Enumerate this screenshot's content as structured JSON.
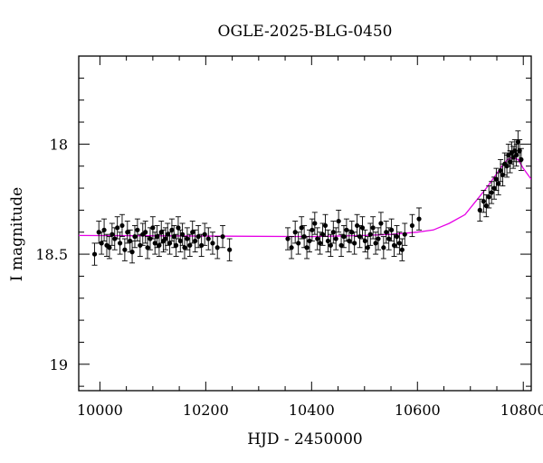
{
  "chart_data": {
    "type": "scatter",
    "title": "OGLE-2025-BLG-0450",
    "xlabel": "HJD - 2450000",
    "ylabel": "I magnitude",
    "xlim": [
      9960,
      10815
    ],
    "ylim": [
      17.6,
      19.12
    ],
    "y_inverted": true,
    "x_ticks": [
      10000,
      10200,
      10400,
      10600,
      10800
    ],
    "y_ticks": [
      18,
      18.5,
      19
    ],
    "colors": {
      "points": "#000000",
      "model": "#e600e6"
    },
    "series": [
      {
        "kind": "data_with_errorbars",
        "x": [
          9990,
          9998,
          10003,
          10008,
          10013,
          10018,
          10023,
          10028,
          10033,
          10038,
          10042,
          10047,
          10052,
          10057,
          10061,
          10066,
          10071,
          10076,
          10081,
          10086,
          10090,
          10095,
          10100,
          10104,
          10108,
          10112,
          10116,
          10120,
          10124,
          10128,
          10132,
          10136,
          10140,
          10144,
          10148,
          10152,
          10156,
          10160,
          10165,
          10170,
          10175,
          10180,
          10186,
          10192,
          10198,
          10205,
          10213,
          10222,
          10232,
          10245,
          10355,
          10362,
          10369,
          10375,
          10381,
          10386,
          10391,
          10396,
          10401,
          10406,
          10411,
          10416,
          10421,
          10426,
          10431,
          10436,
          10441,
          10446,
          10451,
          10456,
          10461,
          10466,
          10471,
          10476,
          10481,
          10486,
          10491,
          10496,
          10501,
          10506,
          10511,
          10516,
          10521,
          10526,
          10531,
          10536,
          10541,
          10546,
          10551,
          10556,
          10561,
          10566,
          10571,
          10576,
          10590,
          10603,
          10718,
          10725,
          10730,
          10735,
          10740,
          10745,
          10749,
          10753,
          10757,
          10761,
          10765,
          10769,
          10772,
          10775,
          10778,
          10781,
          10784,
          10787,
          10790,
          10793,
          10796
        ],
        "y": [
          18.5,
          18.4,
          18.45,
          18.39,
          18.46,
          18.47,
          18.41,
          18.43,
          18.38,
          18.45,
          18.37,
          18.48,
          18.4,
          18.44,
          18.49,
          18.42,
          18.39,
          18.46,
          18.41,
          18.4,
          18.47,
          18.43,
          18.38,
          18.45,
          18.42,
          18.46,
          18.4,
          18.44,
          18.43,
          18.41,
          18.45,
          18.39,
          18.42,
          18.46,
          18.38,
          18.44,
          18.41,
          18.47,
          18.43,
          18.46,
          18.4,
          18.44,
          18.42,
          18.46,
          18.41,
          18.43,
          18.45,
          18.47,
          18.42,
          18.48,
          18.43,
          18.47,
          18.4,
          18.45,
          18.38,
          18.42,
          18.47,
          18.44,
          18.39,
          18.36,
          18.43,
          18.45,
          18.41,
          18.37,
          18.44,
          18.46,
          18.4,
          18.43,
          18.35,
          18.46,
          18.42,
          18.39,
          18.44,
          18.4,
          18.45,
          18.37,
          18.42,
          18.38,
          18.44,
          18.47,
          18.41,
          18.38,
          18.45,
          18.43,
          18.36,
          18.47,
          18.4,
          18.43,
          18.39,
          18.46,
          18.42,
          18.45,
          18.48,
          18.41,
          18.37,
          18.34,
          18.3,
          18.26,
          18.28,
          18.24,
          18.22,
          18.2,
          18.16,
          18.18,
          18.12,
          18.14,
          18.09,
          18.1,
          18.05,
          18.08,
          18.04,
          18.06,
          18.03,
          18.05,
          17.99,
          18.03,
          18.07
        ],
        "error": 0.05
      },
      {
        "kind": "model_curve",
        "x": [
          9960,
          10400,
          10500,
          10550,
          10600,
          10630,
          10660,
          10690,
          10710,
          10730,
          10745,
          10760,
          10770,
          10780,
          10790,
          10800,
          10815
        ],
        "y": [
          18.415,
          18.42,
          18.415,
          18.41,
          18.4,
          18.39,
          18.36,
          18.32,
          18.26,
          18.2,
          18.15,
          18.1,
          18.07,
          18.06,
          18.07,
          18.11,
          18.16
        ]
      }
    ]
  }
}
